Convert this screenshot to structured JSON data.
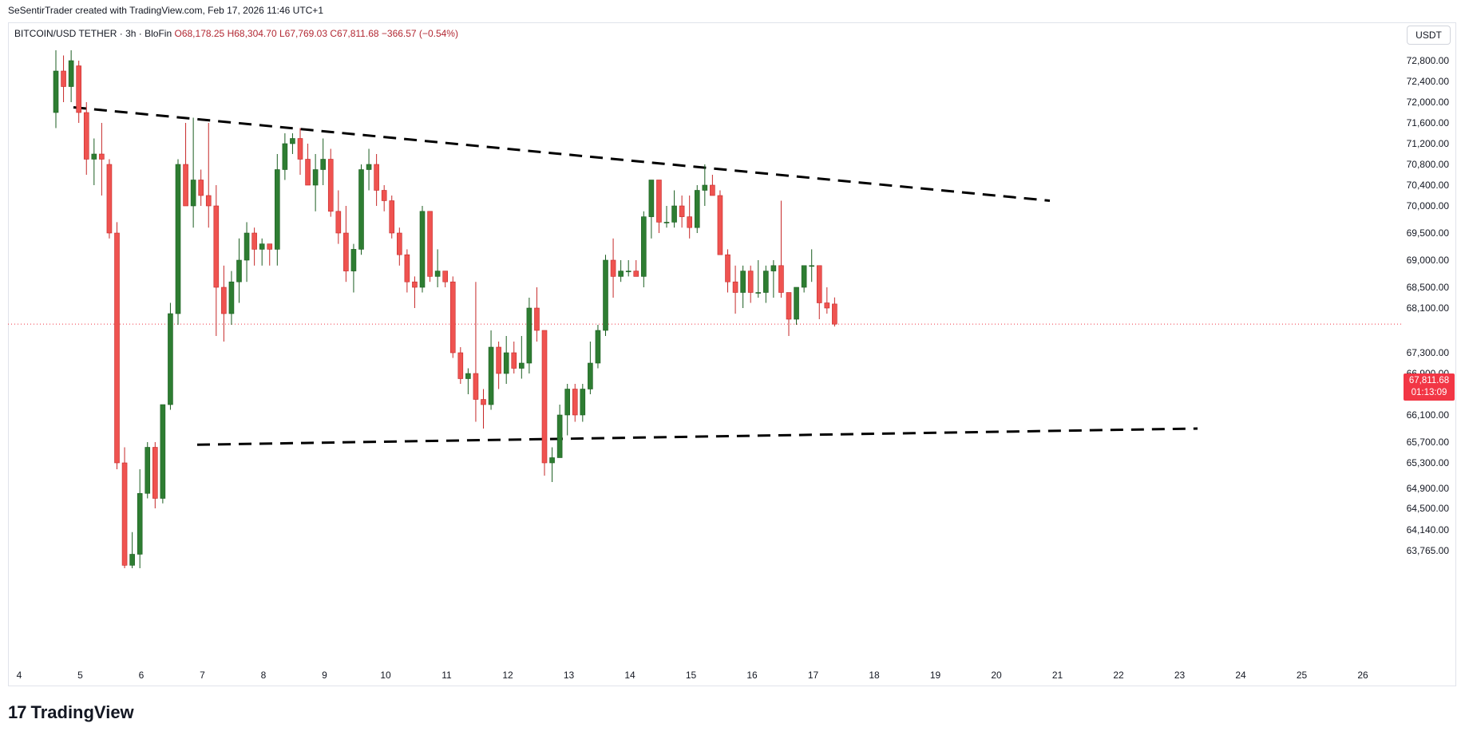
{
  "header": {
    "attribution": "SeSentirTrader created with TradingView.com, Feb 17, 2026 11:46 UTC+1"
  },
  "legend": {
    "symbol": "BITCOIN/USD TETHER · 3h · BloFin",
    "open": "O68,178.25",
    "high": "H68,304.70",
    "low": "L67,769.03",
    "close": "C67,811.68",
    "change": "−366.57 (−0.54%)"
  },
  "toolbar": {
    "currency_label": "USDT"
  },
  "last_price": {
    "value": "67,811.68",
    "countdown": "01:13:09"
  },
  "brand": {
    "name": "TradingView"
  },
  "colors": {
    "up": "#2e7d32",
    "down": "#ef5350",
    "price_tag": "#f23645",
    "trendline": "#000000"
  },
  "chart_data": {
    "type": "candlestick",
    "interval": "3h",
    "y_axis": {
      "position": "right",
      "ticks": [
        72800,
        72400,
        72000,
        71600,
        71200,
        70800,
        70400,
        70000,
        69500,
        69000,
        68500,
        68100,
        67300,
        66900,
        66500,
        66100,
        65700,
        65300,
        64900,
        64500,
        64140,
        63765
      ],
      "tick_labels": [
        "72,800.00",
        "72,400.00",
        "72,000.00",
        "71,600.00",
        "71,200.00",
        "70,800.00",
        "70,400.00",
        "70,000.00",
        "69,500.00",
        "69,000.00",
        "68,500.00",
        "68,100.00",
        "67,300.00",
        "66,900.00",
        "66,500.00",
        "66,100.00",
        "65,700.00",
        "65,300.00",
        "64,900.00",
        "64,500.00",
        "64,140.00",
        "63,765.00"
      ]
    },
    "x_axis": {
      "tick_labels": [
        "4",
        "5",
        "6",
        "7",
        "8",
        "9",
        "10",
        "11",
        "12",
        "13",
        "14",
        "15",
        "16",
        "17",
        "18",
        "19",
        "20",
        "21",
        "22",
        "23",
        "24",
        "25",
        "26"
      ]
    },
    "candles": [
      [
        71800,
        73000,
        71500,
        72600
      ],
      [
        72600,
        72900,
        72000,
        72300
      ],
      [
        72300,
        73000,
        72000,
        72800
      ],
      [
        72700,
        72800,
        71600,
        71800
      ],
      [
        71800,
        72000,
        70600,
        70900
      ],
      [
        70900,
        71300,
        70400,
        71000
      ],
      [
        71000,
        71600,
        70200,
        70900
      ],
      [
        70800,
        70900,
        69400,
        69500
      ],
      [
        69500,
        69700,
        65200,
        65300
      ],
      [
        65300,
        65600,
        63200,
        63500
      ],
      [
        63500,
        64100,
        62800,
        63700
      ],
      [
        63700,
        65200,
        63400,
        64800
      ],
      [
        64800,
        65700,
        64700,
        65600
      ],
      [
        65600,
        65700,
        64500,
        64700
      ],
      [
        64700,
        66200,
        64600,
        66300
      ],
      [
        66300,
        68200,
        66200,
        68000
      ],
      [
        68000,
        70900,
        67800,
        70800
      ],
      [
        70800,
        71600,
        70000,
        70000
      ],
      [
        70000,
        71700,
        69600,
        70500
      ],
      [
        70500,
        70700,
        70000,
        70200
      ],
      [
        70200,
        71600,
        69600,
        70000
      ],
      [
        70000,
        70400,
        67600,
        68500
      ],
      [
        68500,
        68900,
        67500,
        68000
      ],
      [
        68000,
        68800,
        67800,
        68600
      ],
      [
        68600,
        69400,
        68200,
        69000
      ],
      [
        69000,
        69700,
        68600,
        69500
      ],
      [
        69500,
        69600,
        68900,
        69200
      ],
      [
        69200,
        69400,
        68900,
        69300
      ],
      [
        69300,
        69300,
        68900,
        69200
      ],
      [
        69200,
        71000,
        68900,
        70700
      ],
      [
        70700,
        71400,
        70500,
        71200
      ],
      [
        71200,
        71400,
        71000,
        71300
      ],
      [
        71300,
        71500,
        70600,
        70900
      ],
      [
        70900,
        71200,
        70400,
        70400
      ],
      [
        70400,
        71000,
        69900,
        70700
      ],
      [
        70700,
        71300,
        70400,
        70900
      ],
      [
        70900,
        71100,
        69800,
        69900
      ],
      [
        69900,
        70300,
        69300,
        69500
      ],
      [
        69500,
        70000,
        68600,
        68800
      ],
      [
        68800,
        69300,
        68400,
        69200
      ],
      [
        69200,
        70800,
        69100,
        70700
      ],
      [
        70700,
        71100,
        70300,
        70800
      ],
      [
        70800,
        71000,
        70000,
        70300
      ],
      [
        70300,
        70400,
        69900,
        70100
      ],
      [
        70100,
        70200,
        69400,
        69500
      ],
      [
        69500,
        69600,
        68900,
        69100
      ],
      [
        69100,
        69200,
        68400,
        68600
      ],
      [
        68600,
        68700,
        68100,
        68500
      ],
      [
        68500,
        70000,
        68400,
        69900
      ],
      [
        69900,
        69900,
        68600,
        68700
      ],
      [
        68700,
        69200,
        68500,
        68800
      ],
      [
        68800,
        68800,
        68500,
        68600
      ],
      [
        68600,
        68700,
        67200,
        67300
      ],
      [
        67300,
        67400,
        66700,
        66800
      ],
      [
        66800,
        67000,
        66500,
        66900
      ],
      [
        66900,
        68600,
        66000,
        66400
      ],
      [
        66400,
        66600,
        65900,
        66300
      ],
      [
        66300,
        67700,
        66200,
        67400
      ],
      [
        67400,
        67500,
        66600,
        66900
      ],
      [
        66900,
        67600,
        66700,
        67300
      ],
      [
        67300,
        67500,
        66900,
        67000
      ],
      [
        67000,
        67600,
        66800,
        67100
      ],
      [
        67100,
        68300,
        66900,
        68100
      ],
      [
        68100,
        68500,
        67500,
        67700
      ],
      [
        67700,
        67700,
        65100,
        65300
      ],
      [
        65300,
        65600,
        65000,
        65400
      ],
      [
        65400,
        66300,
        65400,
        66100
      ],
      [
        66100,
        66700,
        65800,
        66600
      ],
      [
        66600,
        66700,
        66000,
        66100
      ],
      [
        66100,
        66700,
        66000,
        66600
      ],
      [
        66600,
        67500,
        66500,
        67100
      ],
      [
        67100,
        67800,
        67000,
        67700
      ],
      [
        67700,
        69100,
        67600,
        69000
      ],
      [
        69000,
        69400,
        68300,
        68700
      ],
      [
        68700,
        69000,
        68600,
        68800
      ],
      [
        68800,
        69000,
        68700,
        68800
      ],
      [
        68800,
        69000,
        68700,
        68700
      ],
      [
        68700,
        69900,
        68500,
        69800
      ],
      [
        69800,
        70500,
        69400,
        70500
      ],
      [
        70500,
        70500,
        69500,
        69700
      ],
      [
        69700,
        70000,
        69600,
        69700
      ],
      [
        69700,
        70300,
        69600,
        70000
      ],
      [
        70000,
        70200,
        69600,
        69800
      ],
      [
        69800,
        70200,
        69400,
        69600
      ],
      [
        69600,
        70400,
        69500,
        70300
      ],
      [
        70300,
        70800,
        70000,
        70400
      ],
      [
        70400,
        70600,
        70200,
        70200
      ],
      [
        70200,
        70300,
        69100,
        69100
      ],
      [
        69100,
        69200,
        68400,
        68600
      ],
      [
        68600,
        68900,
        68000,
        68400
      ],
      [
        68400,
        68900,
        68100,
        68800
      ],
      [
        68800,
        68900,
        68200,
        68400
      ],
      [
        68400,
        69000,
        68300,
        68400
      ],
      [
        68400,
        68900,
        68200,
        68800
      ],
      [
        68800,
        69000,
        68300,
        68900
      ],
      [
        68900,
        70100,
        68300,
        68400
      ],
      [
        68400,
        68400,
        67600,
        67900
      ],
      [
        67900,
        68500,
        67800,
        68500
      ],
      [
        68500,
        68900,
        68400,
        68900
      ],
      [
        68900,
        69200,
        68600,
        68900
      ],
      [
        68900,
        68900,
        67900,
        68200
      ],
      [
        68200,
        68500,
        68000,
        68100
      ],
      [
        68178.25,
        68304.7,
        67769.03,
        67811.68
      ]
    ],
    "trendlines": [
      {
        "style": "dashed",
        "from": {
          "x": "5",
          "y": 71900
        },
        "to": {
          "x": "24",
          "y": 70100
        }
      },
      {
        "style": "dashed",
        "from": {
          "x": "7",
          "y": 65650
        },
        "to": {
          "x": "26",
          "y": 65900
        }
      }
    ],
    "last_price_line": 67811.68
  }
}
